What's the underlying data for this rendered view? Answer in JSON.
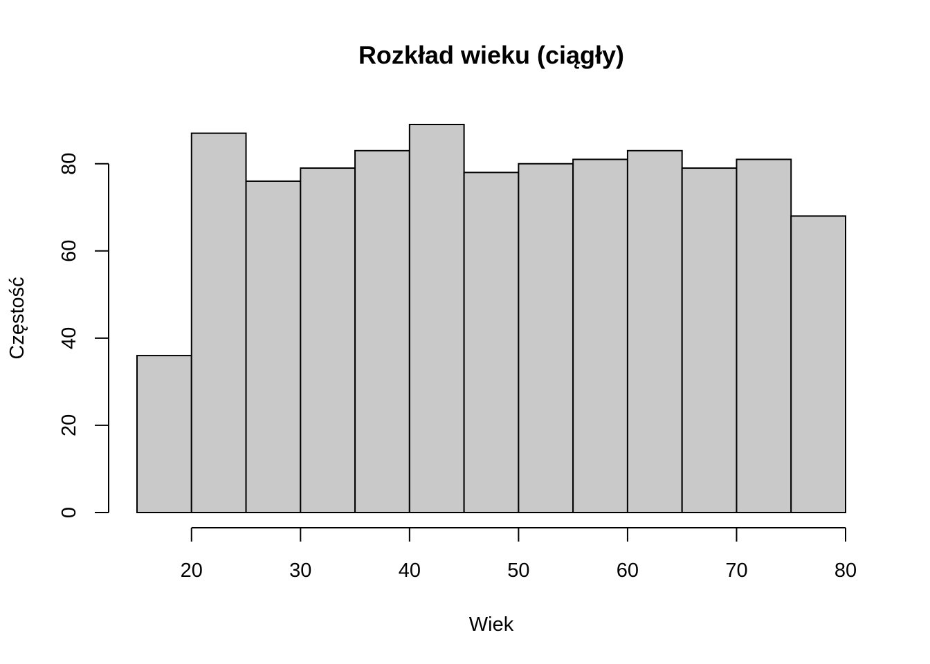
{
  "chart_data": {
    "type": "bar",
    "title": "Rozkład wieku (ciągły)",
    "xlabel": "Wiek",
    "ylabel": "Częstość",
    "bin_edges": [
      15,
      20,
      25,
      30,
      35,
      40,
      45,
      50,
      55,
      60,
      65,
      70,
      75,
      80
    ],
    "values": [
      36,
      87,
      76,
      79,
      83,
      89,
      78,
      80,
      81,
      83,
      79,
      81,
      68
    ],
    "xlim": [
      15,
      80
    ],
    "ylim": [
      0,
      89
    ],
    "x_ticks": [
      20,
      30,
      40,
      50,
      60,
      70,
      80
    ],
    "y_ticks": [
      0,
      20,
      40,
      60,
      80
    ],
    "grid": false,
    "bar_fill": "#c9c9c9",
    "bar_stroke": "#000000"
  }
}
